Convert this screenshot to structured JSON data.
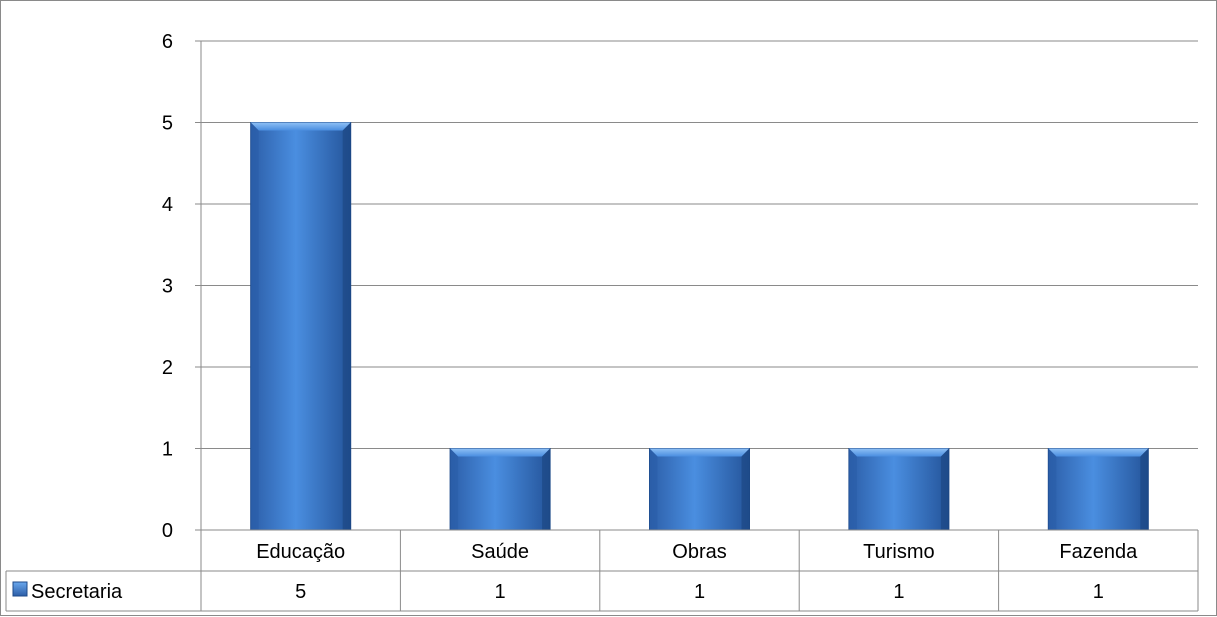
{
  "chart_data": {
    "type": "bar",
    "categories": [
      "Educação",
      "Saúde",
      "Obras",
      "Turismo",
      "Fazenda"
    ],
    "series": [
      {
        "name": "Secretaria",
        "values": [
          5,
          1,
          1,
          1,
          1
        ]
      }
    ],
    "ylim": [
      0,
      6
    ],
    "yticks": [
      0,
      1,
      2,
      3,
      4,
      5,
      6
    ],
    "grid": true,
    "legend": "data-table-left",
    "data_table": true,
    "colors": {
      "bar": "#3f7fd0",
      "bar_light": "#5a9ae8",
      "bar_dark": "#1f4f91",
      "grid": "#8a8a8a"
    }
  }
}
